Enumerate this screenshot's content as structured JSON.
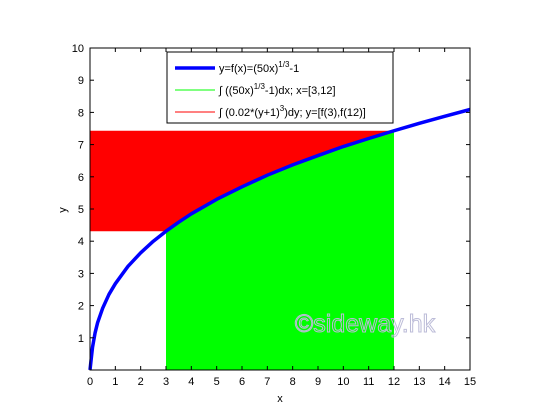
{
  "chart_data": {
    "type": "area",
    "title": "",
    "xlabel": "x",
    "ylabel": "y",
    "xlim": [
      0,
      15
    ],
    "ylim": [
      0,
      10
    ],
    "xticks": [
      "0",
      "1",
      "2",
      "3",
      "4",
      "5",
      "6",
      "7",
      "8",
      "9",
      "10",
      "11",
      "12",
      "13",
      "14",
      "15"
    ],
    "yticks": [
      "1",
      "2",
      "3",
      "4",
      "5",
      "6",
      "7",
      "8",
      "9",
      "10"
    ],
    "grid": false,
    "legend_position": "top-center",
    "series": [
      {
        "name": "y=f(x)=(50x)^1/3-1",
        "kind": "line",
        "color": "#0000ff",
        "x": [
          0,
          0.05,
          0.1,
          0.2,
          0.3,
          0.5,
          0.75,
          1,
          1.5,
          2,
          2.5,
          3,
          3.5,
          4,
          5,
          6,
          7,
          8,
          9,
          10,
          11,
          12,
          13,
          14,
          15
        ],
        "y": [
          -1,
          0.36,
          0.71,
          1.15,
          1.47,
          1.92,
          2.35,
          2.68,
          3.22,
          3.64,
          4.0,
          4.31,
          4.59,
          4.85,
          5.3,
          5.69,
          6.05,
          6.37,
          6.66,
          6.94,
          7.19,
          7.43,
          7.66,
          7.88,
          8.09
        ]
      },
      {
        "name": "∫((50x)^1/3-1)dx; x=[3,12]",
        "kind": "vertical-area",
        "color": "#00ff00",
        "x_range": [
          3,
          12
        ],
        "x": [
          3,
          3.5,
          4,
          5,
          6,
          7,
          8,
          9,
          10,
          11,
          12
        ],
        "y": [
          4.31,
          4.59,
          4.85,
          5.3,
          5.69,
          6.05,
          6.37,
          6.66,
          6.94,
          7.19,
          7.43
        ]
      },
      {
        "name": "∫(0.02*(y+1)^3)dy; y=[f(3),f(12)]",
        "kind": "horizontal-area",
        "color": "#ff0000",
        "y_range": [
          4.31,
          7.43
        ],
        "x_boundary": [
          0,
          3,
          3.5,
          4,
          5,
          6,
          7,
          8,
          9,
          10,
          11,
          12
        ],
        "y_boundary": [
          4.31,
          4.31,
          4.59,
          4.85,
          5.3,
          5.69,
          6.05,
          6.37,
          6.66,
          6.94,
          7.19,
          7.43
        ]
      }
    ],
    "legend": {
      "entries": [
        {
          "main": "y=f(x)=(50x)",
          "sup": "1/3",
          "tail": "-1",
          "color": "#0000ff"
        },
        {
          "main": "∫ ((50x)",
          "sup": "1/3",
          "tail": "-1)dx; x=[3,12]",
          "color": "#00ff00"
        },
        {
          "main": "∫ (0.02*(y+1)",
          "sup": "3",
          "tail": ")dy; y=[f(3),f(12)]",
          "color": "#ff0000"
        }
      ]
    },
    "watermark": "©sideway.hk"
  }
}
